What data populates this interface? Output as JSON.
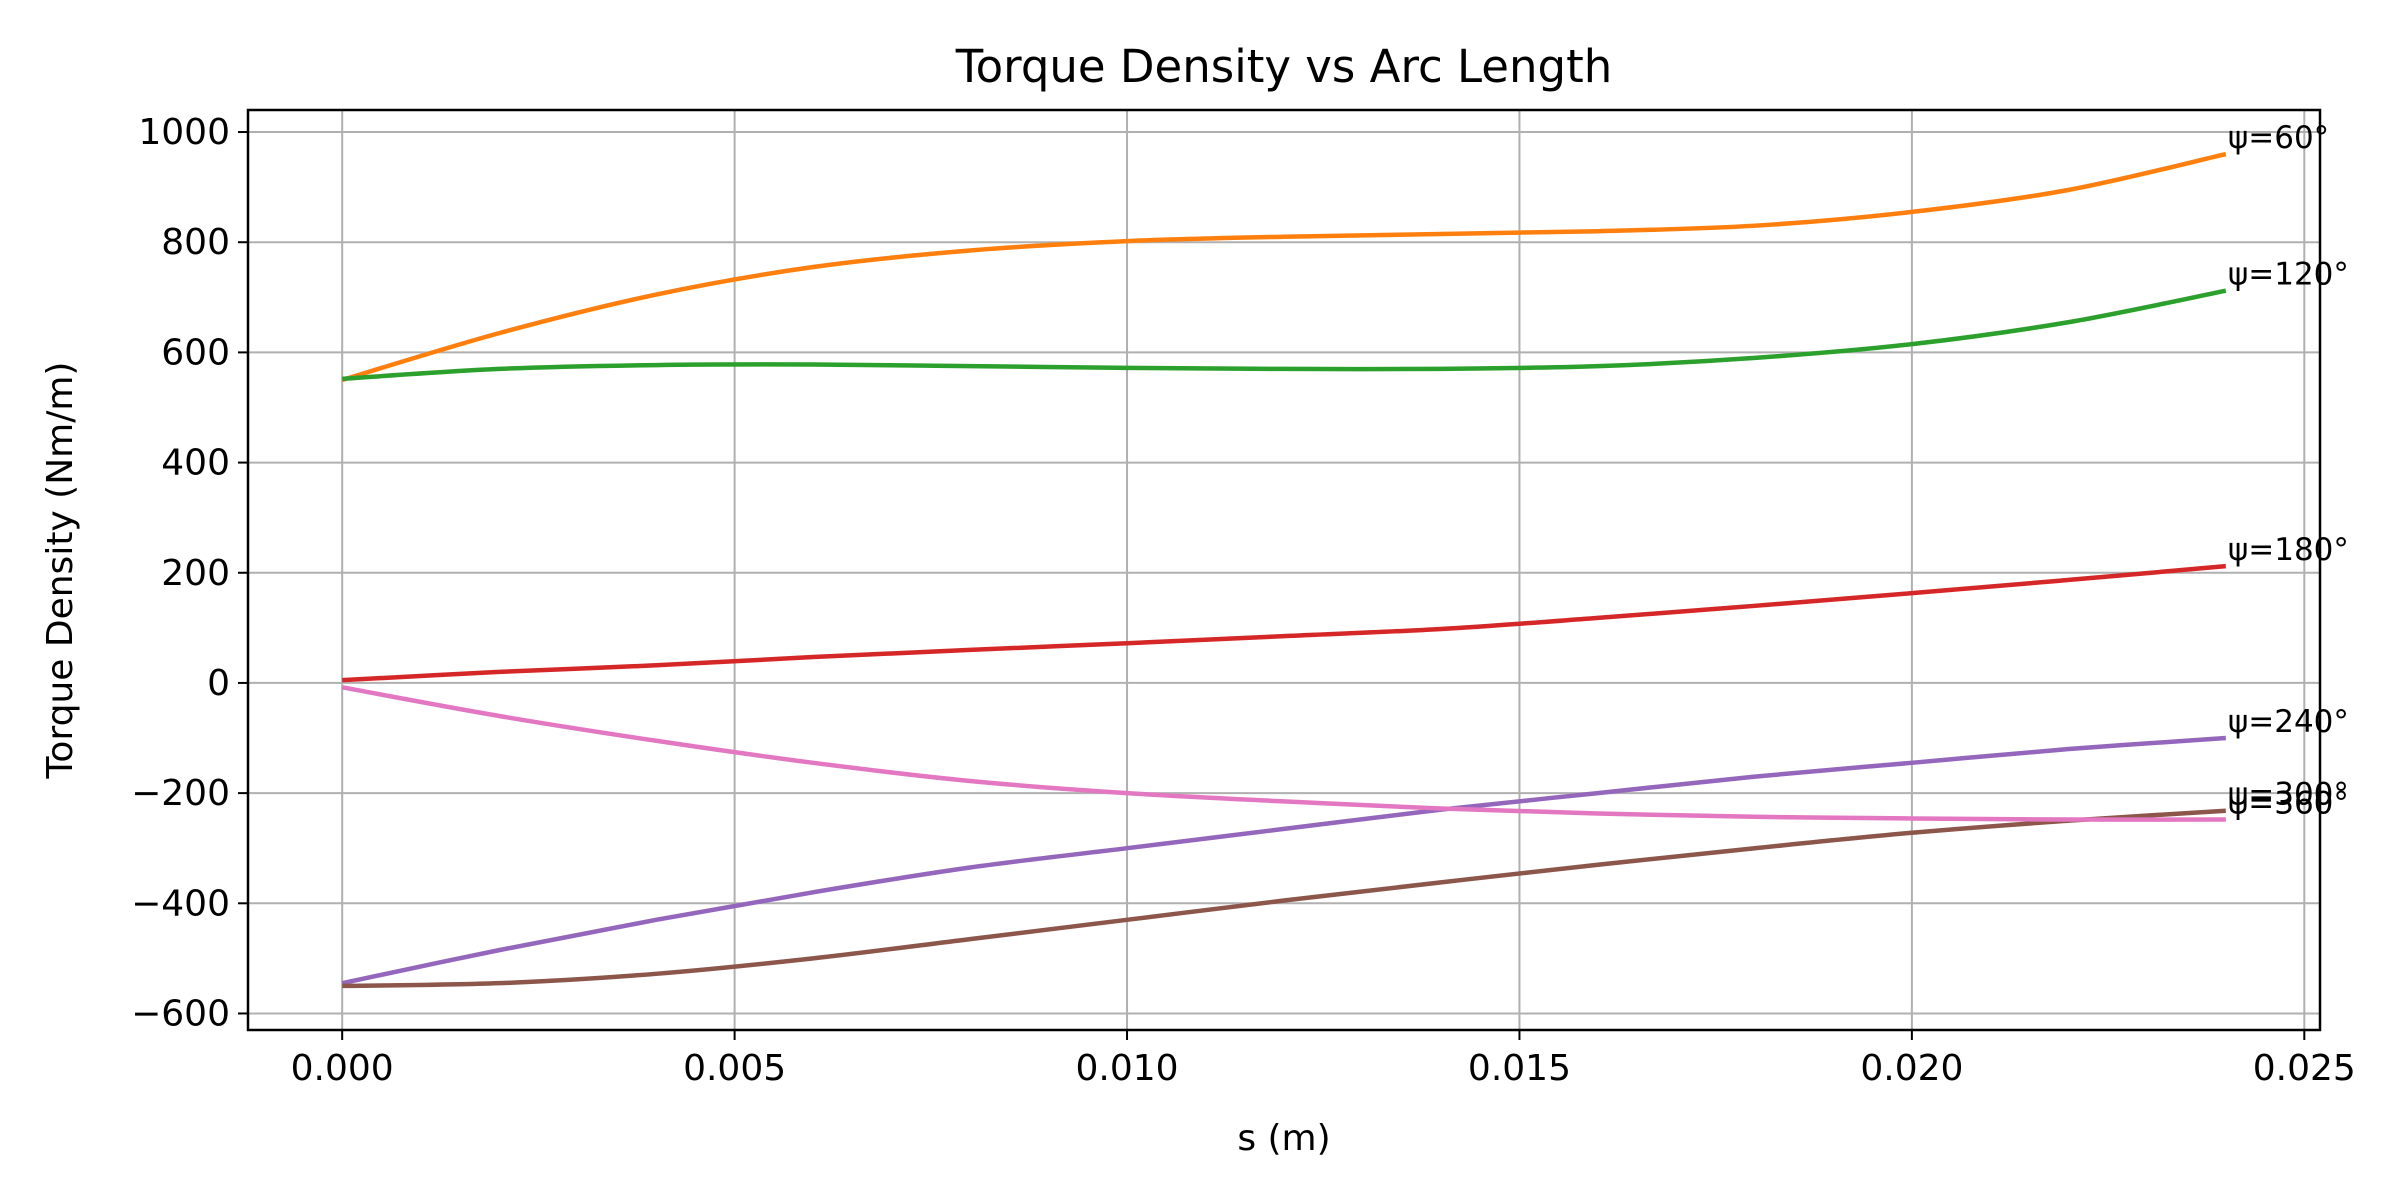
{
  "chart_data": {
    "type": "line",
    "title": "Torque Density vs Arc Length",
    "xlabel": "s (m)",
    "ylabel": "Torque Density (Nm/m)",
    "xlim": [
      -0.0012,
      0.0252
    ],
    "ylim": [
      -630,
      1040
    ],
    "xticks": [
      0.0,
      0.005,
      0.01,
      0.015,
      0.02,
      0.025
    ],
    "xtick_labels": [
      "0.000",
      "0.005",
      "0.010",
      "0.015",
      "0.020",
      "0.025"
    ],
    "yticks": [
      -600,
      -400,
      -200,
      0,
      200,
      400,
      600,
      800,
      1000
    ],
    "ytick_labels": [
      "−600",
      "−400",
      "−200",
      "0",
      "200",
      "400",
      "600",
      "800",
      "1000"
    ],
    "grid": true,
    "legend": "none",
    "x": [
      0.0,
      0.002,
      0.004,
      0.006,
      0.008,
      0.01,
      0.012,
      0.014,
      0.016,
      0.018,
      0.02,
      0.022,
      0.024
    ],
    "series": [
      {
        "name": "ψ=60°",
        "color": "#ff7f0e",
        "values": [
          550,
          635,
          705,
          755,
          785,
          802,
          810,
          815,
          820,
          830,
          855,
          895,
          960
        ]
      },
      {
        "name": "ψ=120°",
        "color": "#2ca02c",
        "values": [
          552,
          570,
          577,
          578,
          575,
          572,
          570,
          570,
          575,
          590,
          615,
          655,
          712
        ]
      },
      {
        "name": "ψ=180°",
        "color": "#d62728",
        "values": [
          5,
          20,
          32,
          47,
          60,
          72,
          85,
          98,
          118,
          140,
          163,
          187,
          212
        ]
      },
      {
        "name": "ψ=240°",
        "color": "#9467bd",
        "values": [
          -545,
          -485,
          -430,
          -380,
          -335,
          -300,
          -265,
          -230,
          -200,
          -170,
          -145,
          -120,
          -100
        ]
      },
      {
        "name": "ψ=300°",
        "color": "#8c564b",
        "values": [
          -550,
          -545,
          -528,
          -500,
          -465,
          -430,
          -395,
          -362,
          -330,
          -300,
          -272,
          -250,
          -232
        ]
      },
      {
        "name": "ψ=360°",
        "color": "#e377c2",
        "values": [
          -8,
          -60,
          -105,
          -145,
          -178,
          -200,
          -215,
          -228,
          -237,
          -243,
          -246,
          -248,
          -248
        ]
      }
    ]
  }
}
